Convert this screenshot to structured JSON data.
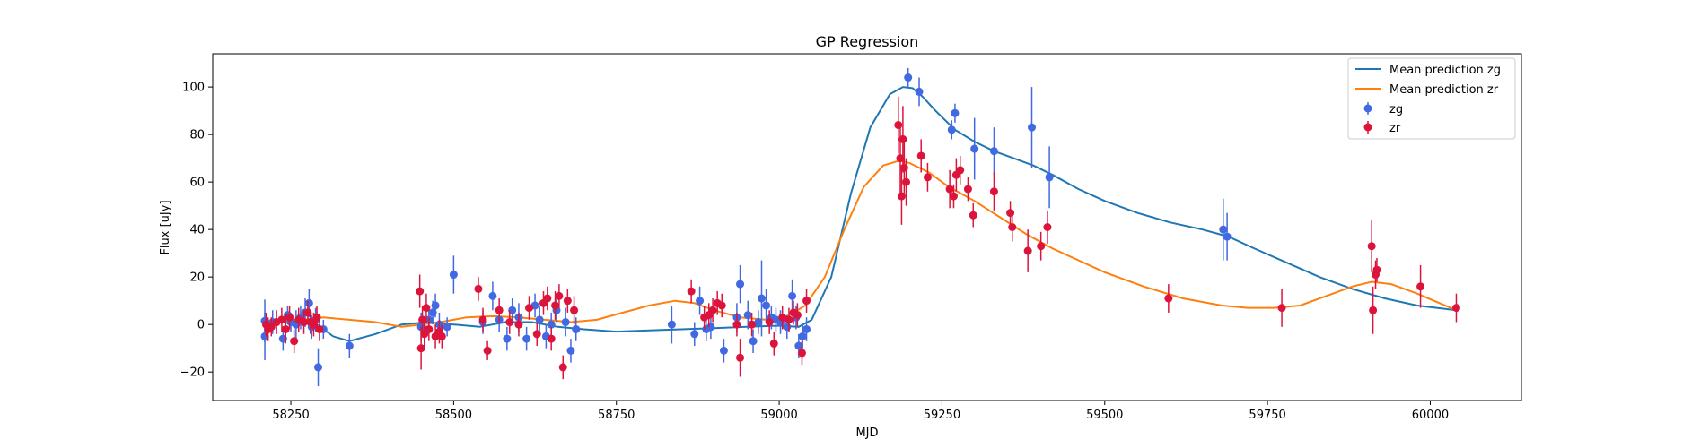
{
  "chart_data": {
    "type": "scatter",
    "title": "GP Regression",
    "xlabel": "MJD",
    "ylabel": "Flux [uJy]",
    "xlim": [
      58130,
      60140
    ],
    "ylim": [
      -32,
      114
    ],
    "xticks": [
      58250,
      58500,
      58750,
      59000,
      59250,
      59500,
      59750,
      60000
    ],
    "yticks": [
      -20,
      0,
      20,
      40,
      60,
      80,
      100
    ],
    "grid": false,
    "legend_position": "top-right",
    "colors": {
      "zg": "#4169e1",
      "zr": "#dc143c",
      "mean_zg": "#1f77b4",
      "mean_zr": "#ff7f0e"
    },
    "lines": [
      {
        "name": "Mean prediction zg",
        "color": "#1f77b4",
        "x": [
          58210,
          58230,
          58260,
          58290,
          58315,
          58340,
          58380,
          58420,
          58460,
          58500,
          58540,
          58580,
          58620,
          58660,
          58700,
          58750,
          58800,
          58850,
          58900,
          58950,
          59000,
          59030,
          59050,
          59080,
          59110,
          59140,
          59170,
          59190,
          59205,
          59220,
          59240,
          59270,
          59300,
          59330,
          59360,
          59390,
          59420,
          59460,
          59500,
          59550,
          59600,
          59650,
          59690,
          59730,
          59780,
          59830,
          59880,
          59930,
          59980,
          60040
        ],
        "y": [
          1.5,
          1,
          2,
          0,
          -5,
          -7,
          -4,
          0,
          1,
          0,
          -1,
          1,
          1,
          -1,
          -2,
          -3,
          -2.5,
          -2,
          -1.5,
          -1,
          -0.5,
          -1,
          2,
          20,
          55,
          83,
          97,
          100,
          99.5,
          96,
          90,
          82,
          77,
          73,
          70,
          67,
          63,
          57,
          52,
          47,
          43,
          40,
          37,
          32,
          26,
          20,
          15,
          11,
          8,
          6
        ]
      },
      {
        "name": "Mean prediction zr",
        "color": "#ff7f0e",
        "x": [
          58210,
          58240,
          58270,
          58300,
          58340,
          58380,
          58420,
          58450,
          58480,
          58520,
          58560,
          58600,
          58640,
          58680,
          58720,
          58760,
          58800,
          58840,
          58870,
          58900,
          58940,
          58980,
          59010,
          59040,
          59070,
          59100,
          59130,
          59160,
          59185,
          59200,
          59230,
          59260,
          59300,
          59340,
          59380,
          59420,
          59460,
          59500,
          59560,
          59620,
          59680,
          59720,
          59760,
          59800,
          59840,
          59880,
          59910,
          59940,
          59980,
          60040
        ],
        "y": [
          0,
          1,
          2,
          3,
          2,
          1,
          -1,
          0,
          1,
          3,
          3.5,
          3,
          2,
          1,
          2,
          5,
          8,
          10,
          9,
          6,
          3,
          2,
          3,
          8,
          20,
          40,
          58,
          67,
          69,
          68,
          64,
          58,
          52,
          45,
          38,
          32,
          27,
          22,
          16,
          11,
          8,
          7,
          7,
          8,
          12,
          16,
          18,
          17,
          13,
          6
        ]
      }
    ],
    "series": [
      {
        "name": "zg",
        "color": "#4169e1",
        "x": [
          58210,
          58210,
          58222,
          58238,
          58245,
          58250,
          58258,
          58265,
          58272,
          58278,
          58282,
          58288,
          58292,
          58300,
          58340,
          58450,
          58455,
          58462,
          58468,
          58472,
          58478,
          58490,
          58500,
          58545,
          58560,
          58570,
          58582,
          58590,
          58600,
          58612,
          58625,
          58632,
          58642,
          58650,
          58658,
          58672,
          58680,
          58688,
          58835,
          58870,
          58878,
          58888,
          58895,
          58915,
          58935,
          58940,
          58952,
          58960,
          58968,
          58973,
          58980,
          58988,
          58995,
          59002,
          59012,
          59020,
          59026,
          59030,
          59036,
          59042,
          59198,
          59215,
          59265,
          59270,
          59300,
          59330,
          59388,
          59415,
          59682,
          59688
        ],
        "y": [
          1.5,
          -5,
          1,
          -6,
          4,
          1,
          0,
          3,
          5,
          9,
          -1,
          2,
          -18,
          -2,
          -9,
          -1,
          -2,
          2,
          5,
          8,
          0,
          -1,
          21,
          1,
          12,
          2,
          -6,
          6,
          3,
          -6,
          8,
          2,
          -5,
          0,
          6,
          1,
          -11,
          -2,
          0,
          -4,
          10,
          -2,
          -1,
          -11,
          3,
          17,
          4,
          -7,
          1,
          11,
          8,
          3,
          2,
          1,
          -1,
          12,
          3,
          -9,
          -5,
          -2,
          104,
          98,
          82,
          89,
          74,
          73,
          83,
          62,
          40,
          37
        ],
        "yerr": [
          9,
          10,
          5,
          5,
          4,
          4,
          6,
          5,
          6,
          6,
          5,
          5,
          8,
          4,
          5,
          6,
          5,
          5,
          5,
          5,
          5,
          4,
          8,
          5,
          6,
          5,
          5,
          5,
          6,
          5,
          5,
          6,
          5,
          5,
          5,
          6,
          5,
          5,
          8,
          5,
          6,
          5,
          5,
          5,
          6,
          8,
          6,
          5,
          5,
          16,
          7,
          5,
          5,
          5,
          5,
          7,
          5,
          5,
          5,
          5,
          4,
          6,
          4,
          4,
          13,
          10,
          17,
          13,
          13,
          10
        ]
      },
      {
        "name": "zr",
        "color": "#dc143c",
        "x": [
          58212,
          58215,
          58220,
          58228,
          58236,
          58242,
          58248,
          58255,
          58262,
          58270,
          58276,
          58280,
          58285,
          58290,
          58294,
          58448,
          58450,
          58452,
          58455,
          58458,
          58462,
          58472,
          58478,
          58482,
          58538,
          58545,
          58552,
          58570,
          58586,
          58600,
          58616,
          58628,
          58638,
          58644,
          58650,
          58656,
          58662,
          58668,
          58675,
          58685,
          58865,
          58885,
          58892,
          58898,
          58905,
          58912,
          58935,
          58940,
          58958,
          58985,
          58992,
          59005,
          59015,
          59022,
          59028,
          59035,
          59042,
          59183,
          59186,
          59188,
          59190,
          59192,
          59195,
          59218,
          59228,
          59262,
          59268,
          59272,
          59278,
          59290,
          59298,
          59330,
          59355,
          59358,
          59382,
          59402,
          59412,
          59598,
          59772,
          59910,
          59912,
          59916,
          59918,
          59985,
          60040
        ],
        "y": [
          0,
          -2,
          -1,
          1,
          2,
          -2,
          3,
          -7,
          2,
          1,
          5,
          1,
          0,
          3,
          -2,
          14,
          -10,
          2,
          -4,
          7,
          -2,
          -5,
          -3,
          -5,
          15,
          2,
          -11,
          6,
          1,
          0,
          7,
          -4,
          9,
          11,
          -6,
          8,
          12,
          -18,
          10,
          6,
          14,
          3,
          4,
          6,
          9,
          8,
          0,
          -14,
          0,
          1,
          -8,
          3,
          2,
          5,
          4,
          -12,
          10,
          84,
          70,
          54,
          78,
          66,
          60,
          71,
          62,
          57,
          54,
          63,
          65,
          57,
          46,
          56,
          47,
          41,
          31,
          33,
          41,
          11,
          7,
          33,
          6,
          21,
          23,
          16,
          7
        ],
        "yerr": [
          5,
          5,
          4,
          5,
          5,
          6,
          5,
          5,
          5,
          5,
          5,
          5,
          5,
          5,
          5,
          7,
          9,
          6,
          6,
          6,
          5,
          5,
          5,
          5,
          5,
          5,
          4,
          5,
          5,
          5,
          5,
          5,
          5,
          5,
          5,
          6,
          5,
          5,
          5,
          6,
          5,
          5,
          5,
          5,
          5,
          5,
          5,
          8,
          5,
          5,
          5,
          5,
          5,
          5,
          5,
          5,
          5,
          12,
          15,
          12,
          14,
          12,
          10,
          7,
          6,
          8,
          5,
          7,
          6,
          5,
          5,
          8,
          5,
          6,
          9,
          6,
          7,
          6,
          8,
          11,
          10,
          6,
          5,
          9,
          6
        ]
      }
    ],
    "legend": [
      "Mean prediction zg",
      "Mean prediction zr",
      "zg",
      "zr"
    ]
  }
}
